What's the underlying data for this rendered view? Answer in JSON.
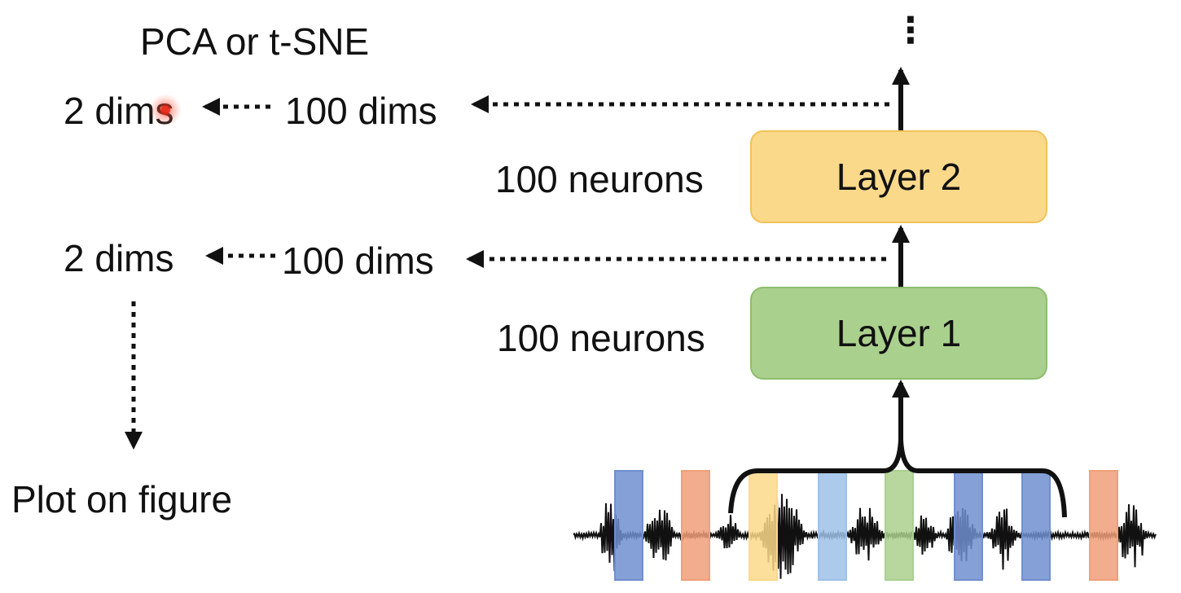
{
  "title": "PCA or t-SNE",
  "top_ellipsis": "⋮",
  "upper_row": {
    "reduced": "2 dims",
    "original": "100 dims"
  },
  "lower_row": {
    "reduced": "2 dims",
    "original": "100 dims"
  },
  "layer2": {
    "label": "Layer 2",
    "size": "100 neurons",
    "color": "#fbd98a"
  },
  "layer1": {
    "label": "Layer 1",
    "size": "100 neurons",
    "color": "#aad08e"
  },
  "plot_label": "Plot on figure",
  "waveform_frames": [
    {
      "color": "#6f8fd0"
    },
    {
      "color": "#ef9f7a"
    },
    {
      "color": "#fbd98a"
    },
    {
      "color": "#9dc1e8"
    },
    {
      "color": "#aad08e"
    },
    {
      "color": "#6f8fd0"
    },
    {
      "color": "#6f8fd0"
    },
    {
      "color": "#ef9f7a"
    }
  ]
}
